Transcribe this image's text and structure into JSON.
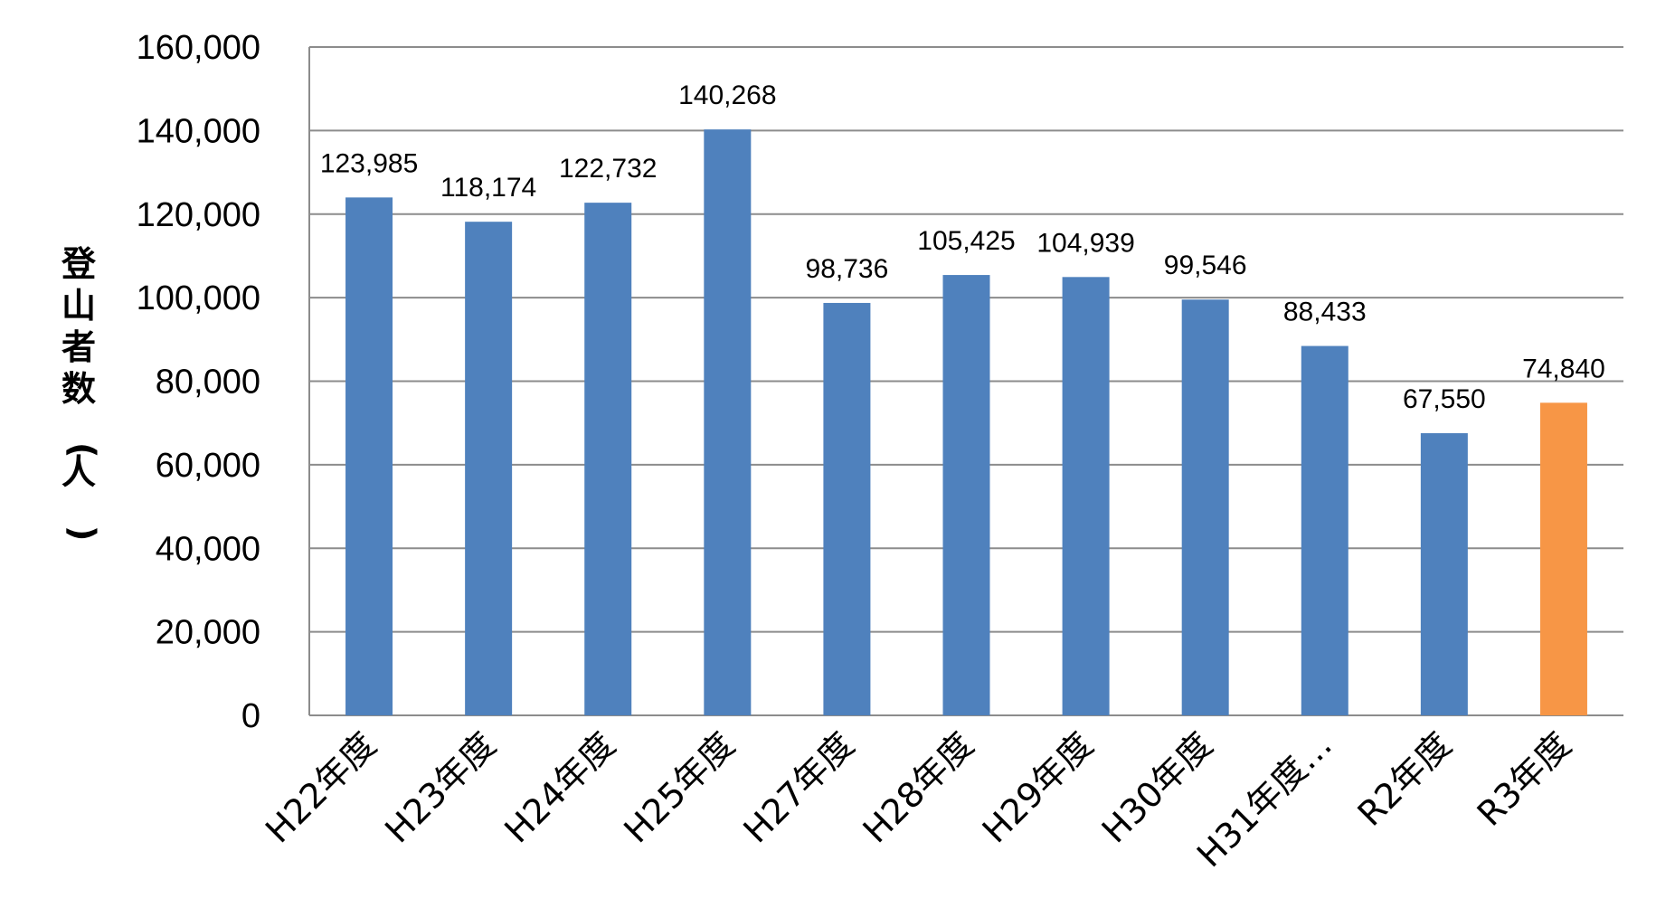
{
  "chart_data": {
    "type": "bar",
    "title": "",
    "xlabel": "",
    "ylabel": "登山者数(人)",
    "ylim": [
      0,
      160000
    ],
    "yticks": [
      0,
      20000,
      40000,
      60000,
      80000,
      100000,
      120000,
      140000,
      160000
    ],
    "ytick_labels": [
      "0",
      "20,000",
      "40,000",
      "60,000",
      "80,000",
      "100,000",
      "120,000",
      "140,000",
      "160,000"
    ],
    "grid": true,
    "categories": [
      "H22年度",
      "H23年度",
      "H24年度",
      "H25年度",
      "H27年度",
      "H28年度",
      "H29年度",
      "H30年度",
      "H31年度…",
      "R2年度",
      "R3年度"
    ],
    "values": [
      123985,
      118174,
      122732,
      140268,
      98736,
      105425,
      104939,
      99546,
      88433,
      67550,
      74840
    ],
    "value_labels": [
      "123,985",
      "118,174",
      "122,732",
      "140,268",
      "98,736",
      "105,425",
      "104,939",
      "99,546",
      "88,433",
      "67,550",
      "74,840"
    ],
    "colors": [
      "#4f81bd",
      "#4f81bd",
      "#4f81bd",
      "#4f81bd",
      "#4f81bd",
      "#4f81bd",
      "#4f81bd",
      "#4f81bd",
      "#4f81bd",
      "#4f81bd",
      "#f79646"
    ]
  }
}
